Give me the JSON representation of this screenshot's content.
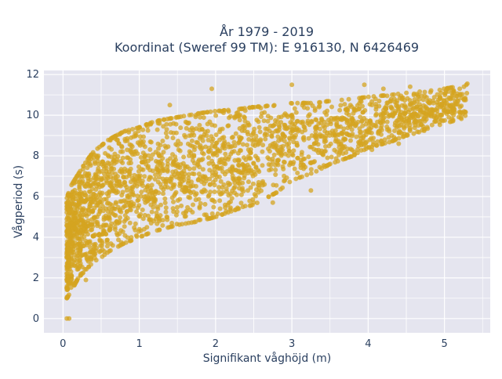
{
  "chart_data": {
    "type": "scatter",
    "title_lines": [
      "År 1979 - 2019",
      "Koordinat (Sweref 99 TM): E 916130, N 6426469"
    ],
    "xlabel": "Signifikant våghöjd (m)",
    "ylabel": "Vågperiod (s)",
    "xlim": [
      -0.25,
      5.6
    ],
    "ylim": [
      -0.7,
      12.2
    ],
    "x_ticks": [
      0,
      1,
      2,
      3,
      4,
      5
    ],
    "x_tick_labels": [
      "0",
      "1",
      "2",
      "3",
      "4",
      "5"
    ],
    "y_ticks": [
      0,
      2,
      4,
      6,
      8,
      10,
      12
    ],
    "y_tick_labels": [
      "0",
      "2",
      "4",
      "6",
      "8",
      "10",
      "12"
    ],
    "grid": true,
    "legend": "none",
    "colors": {
      "marker": "#d4a420",
      "plot_background": "#e5e5ef",
      "grid": "#ffffff"
    },
    "series": [
      {
        "marker_opacity": 0.75,
        "envelope_description": "Dense point cloud; approximate min/max wave period per wave height",
        "envelope": {
          "x": [
            0.05,
            0.1,
            0.2,
            0.3,
            0.4,
            0.5,
            0.6,
            0.8,
            1.0,
            1.2,
            1.5,
            1.8,
            2.0,
            2.3,
            2.5,
            2.8,
            3.0,
            3.3,
            3.5,
            3.8,
            4.0,
            4.3,
            4.5,
            4.8,
            5.0,
            5.3
          ],
          "y_min": [
            1.0,
            1.3,
            2.0,
            2.4,
            2.8,
            3.0,
            3.3,
            3.7,
            4.0,
            4.3,
            4.6,
            4.8,
            5.0,
            5.4,
            5.6,
            6.2,
            6.8,
            7.2,
            7.6,
            8.0,
            8.4,
            8.7,
            9.0,
            9.3,
            9.6,
            9.9
          ],
          "y_max": [
            5.9,
            6.5,
            7.1,
            7.7,
            8.2,
            8.5,
            8.8,
            9.2,
            9.4,
            9.7,
            9.9,
            10.1,
            10.2,
            10.3,
            10.4,
            10.5,
            10.6,
            10.6,
            10.7,
            10.8,
            10.9,
            11.0,
            11.1,
            11.2,
            11.3,
            11.5
          ]
        },
        "outliers": [
          {
            "x": 0.05,
            "y": 0.0
          },
          {
            "x": 0.08,
            "y": 0.0
          },
          {
            "x": 1.4,
            "y": 10.5
          },
          {
            "x": 1.95,
            "y": 11.3
          },
          {
            "x": 3.0,
            "y": 11.5
          },
          {
            "x": 3.95,
            "y": 11.5
          },
          {
            "x": 4.2,
            "y": 11.3
          },
          {
            "x": 4.55,
            "y": 11.4
          },
          {
            "x": 5.3,
            "y": 11.55
          },
          {
            "x": 5.2,
            "y": 11.3
          },
          {
            "x": 2.75,
            "y": 5.7
          },
          {
            "x": 3.25,
            "y": 6.3
          },
          {
            "x": 4.05,
            "y": 8.3
          },
          {
            "x": 4.4,
            "y": 8.6
          },
          {
            "x": 4.9,
            "y": 9.9
          },
          {
            "x": 5.1,
            "y": 10.1
          },
          {
            "x": 0.3,
            "y": 5.8
          },
          {
            "x": 0.3,
            "y": 1.9
          }
        ]
      }
    ]
  }
}
